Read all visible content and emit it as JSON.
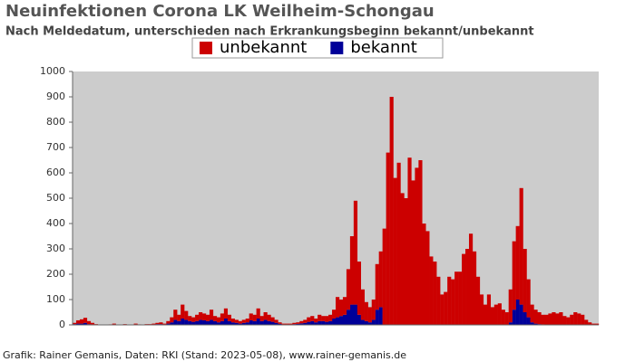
{
  "chart_data": {
    "type": "stacked_bar",
    "title": "Neuinfektionen Corona LK Weilheim-Schongau",
    "subtitle": "Nach Meldedatum, unterschieden nach Erkrankungsbeginn bekannt/unbekannt",
    "source": "Grafik: Rainer Gemanis, Daten: RKI (Stand: 2023-05-08), www.rainer-gemanis.de",
    "categories": [
      null,
      null,
      null,
      null,
      null,
      null,
      null,
      null,
      null,
      null,
      null,
      null,
      null,
      null,
      null,
      null,
      null,
      null,
      null,
      null,
      null,
      null,
      null,
      null,
      null,
      null,
      null,
      null,
      null,
      null,
      null,
      null,
      null,
      null,
      null,
      null,
      null,
      null,
      null,
      null,
      null,
      null,
      null,
      null,
      null,
      null,
      null,
      null,
      null,
      null,
      null,
      null,
      null,
      null,
      null,
      null,
      null,
      null,
      null,
      null,
      null,
      null,
      null,
      null,
      null,
      null,
      null,
      null,
      null,
      null,
      null,
      null,
      null,
      null,
      null,
      null,
      null,
      null,
      null,
      null,
      null,
      null,
      null,
      null,
      null,
      null,
      null,
      null,
      null,
      null,
      null,
      null,
      null,
      null,
      null,
      null,
      null,
      null,
      null,
      null,
      null,
      null,
      null,
      null,
      null,
      null,
      null,
      null,
      null,
      null,
      null,
      null,
      null,
      null,
      null,
      null,
      null,
      null,
      null,
      null,
      null,
      null,
      null,
      null,
      null,
      null,
      null,
      null,
      null,
      null,
      null,
      null,
      null,
      null,
      null,
      null,
      null,
      null,
      null,
      null,
      null,
      null,
      null,
      null,
      null,
      null
    ],
    "series": [
      {
        "name": "unbekannt",
        "color": "#cc0000",
        "values": [
          5,
          13,
          17,
          20,
          12,
          6,
          2,
          0,
          0,
          0,
          1,
          3,
          0,
          0,
          2,
          0,
          0,
          3,
          1,
          0,
          2,
          2,
          3,
          5,
          7,
          3,
          10,
          20,
          40,
          25,
          55,
          35,
          20,
          18,
          25,
          30,
          27,
          25,
          40,
          20,
          20,
          30,
          40,
          25,
          15,
          12,
          10,
          12,
          15,
          27,
          25,
          40,
          20,
          30,
          25,
          18,
          12,
          6,
          3,
          3,
          3,
          5,
          6,
          9,
          12,
          18,
          20,
          15,
          25,
          20,
          23,
          25,
          35,
          80,
          65,
          70,
          160,
          270,
          410,
          210,
          120,
          75,
          60,
          80,
          180,
          220,
          380,
          680,
          900,
          580,
          640,
          520,
          500,
          660,
          570,
          620,
          650,
          400,
          370,
          270,
          250,
          190,
          120,
          130,
          190,
          180,
          210,
          210,
          280,
          300,
          360,
          290,
          190,
          120,
          80,
          120,
          70,
          80,
          85,
          60,
          50,
          130,
          270,
          290,
          460,
          250,
          150,
          70,
          55,
          47,
          38,
          40,
          45,
          50,
          45,
          50,
          35,
          30,
          40,
          50,
          45,
          40,
          20,
          10,
          5,
          5
        ]
      },
      {
        "name": "bekannt",
        "color": "#000099",
        "values": [
          3,
          5,
          5,
          8,
          3,
          2,
          1,
          0,
          0,
          0,
          1,
          2,
          0,
          0,
          1,
          0,
          0,
          2,
          1,
          0,
          1,
          1,
          2,
          3,
          3,
          2,
          5,
          10,
          20,
          15,
          25,
          20,
          15,
          12,
          15,
          20,
          18,
          15,
          20,
          15,
          10,
          15,
          25,
          15,
          10,
          8,
          5,
          8,
          10,
          18,
          15,
          25,
          15,
          20,
          15,
          12,
          8,
          4,
          2,
          2,
          2,
          3,
          4,
          6,
          8,
          12,
          15,
          10,
          15,
          15,
          12,
          15,
          25,
          30,
          35,
          40,
          60,
          80,
          80,
          40,
          20,
          15,
          10,
          20,
          60,
          70,
          0,
          0,
          0,
          0,
          0,
          0,
          0,
          0,
          0,
          0,
          0,
          0,
          0,
          0,
          0,
          0,
          0,
          0,
          0,
          0,
          0,
          0,
          0,
          0,
          0,
          0,
          0,
          0,
          0,
          0,
          0,
          0,
          0,
          0,
          0,
          10,
          60,
          100,
          80,
          50,
          30,
          10,
          5,
          3,
          2,
          0,
          0,
          0,
          0,
          0,
          0,
          0,
          0,
          0,
          0,
          0,
          0,
          0,
          0,
          0
        ]
      }
    ],
    "ylim": [
      0,
      1000
    ],
    "yticks": [
      0,
      100,
      200,
      300,
      400,
      500,
      600,
      700,
      800,
      900,
      1000
    ],
    "plot_background": "#cccccc"
  }
}
